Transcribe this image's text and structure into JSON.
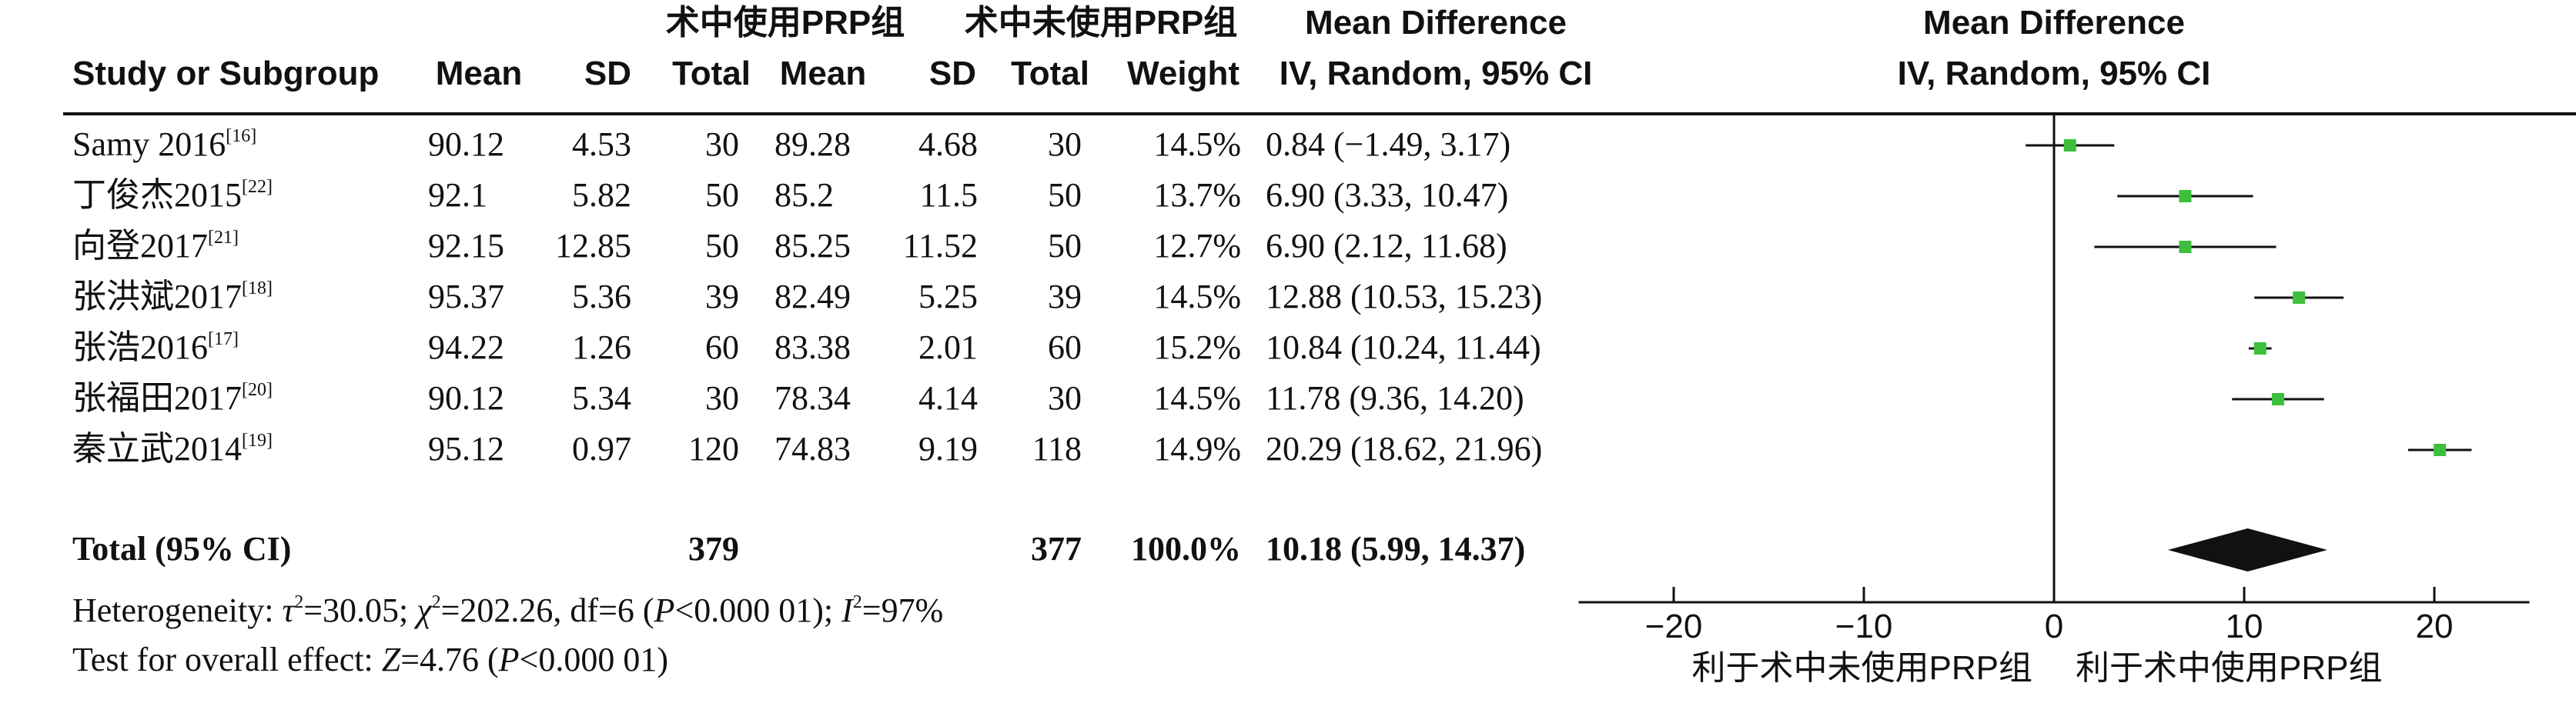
{
  "headers": {
    "group1": "术中使用PRP组",
    "group2": "术中未使用PRP组",
    "md_left_line1": "Mean Difference",
    "md_left_line2": "IV, Random, 95% CI",
    "md_right_line1": "Mean Difference",
    "md_right_line2": "IV, Random, 95% CI",
    "study": "Study or Subgroup",
    "mean1": "Mean",
    "sd1": "SD",
    "total1": "Total",
    "mean2": "Mean",
    "sd2": "SD",
    "total2": "Total",
    "weight": "Weight"
  },
  "studies": [
    {
      "name": "Samy 2016",
      "ref": "[16]",
      "mean1": "90.12",
      "sd1": "4.53",
      "total1": "30",
      "mean2": "89.28",
      "sd2": "4.68",
      "total2": "30",
      "weight": "14.5%",
      "ci": "0.84 (−1.49, 3.17)"
    },
    {
      "name": "丁俊杰2015",
      "ref": "[22]",
      "mean1": "92.1",
      "sd1": "5.82",
      "total1": "50",
      "mean2": "85.2",
      "sd2": "11.5",
      "total2": "50",
      "weight": "13.7%",
      "ci": "6.90 (3.33, 10.47)"
    },
    {
      "name": "向登2017",
      "ref": "[21]",
      "mean1": "92.15",
      "sd1": "12.85",
      "total1": "50",
      "mean2": "85.25",
      "sd2": "11.52",
      "total2": "50",
      "weight": "12.7%",
      "ci": "6.90 (2.12, 11.68)"
    },
    {
      "name": "张洪斌2017",
      "ref": "[18]",
      "mean1": "95.37",
      "sd1": "5.36",
      "total1": "39",
      "mean2": "82.49",
      "sd2": "5.25",
      "total2": "39",
      "weight": "14.5%",
      "ci": "12.88 (10.53, 15.23)"
    },
    {
      "name": "张浩2016",
      "ref": "[17]",
      "mean1": "94.22",
      "sd1": "1.26",
      "total1": "60",
      "mean2": "83.38",
      "sd2": "2.01",
      "total2": "60",
      "weight": "15.2%",
      "ci": "10.84 (10.24, 11.44)"
    },
    {
      "name": "张福田2017",
      "ref": "[20]",
      "mean1": "90.12",
      "sd1": "5.34",
      "total1": "30",
      "mean2": "78.34",
      "sd2": "4.14",
      "total2": "30",
      "weight": "14.5%",
      "ci": "11.78 (9.36, 14.20)"
    },
    {
      "name": "秦立武2014",
      "ref": "[19]",
      "mean1": "95.12",
      "sd1": "0.97",
      "total1": "120",
      "mean2": "74.83",
      "sd2": "9.19",
      "total2": "118",
      "weight": "14.9%",
      "ci": "20.29 (18.62, 21.96)"
    }
  ],
  "total": {
    "label": "Total (95% CI)",
    "total1": "379",
    "total2": "377",
    "weight": "100.0%",
    "ci": "10.18 (5.99, 14.37)"
  },
  "heterogeneity": {
    "prefix": "Heterogeneity: ",
    "tau": "τ",
    "tau_val": "=30.05; ",
    "chi": "χ",
    "chi_val": "=202.26, df=6 (",
    "p": "P",
    "p_val": "<0.000 01); ",
    "i": "I",
    "i_val": "=97%"
  },
  "overall_effect": {
    "prefix": "Test for overall effect: ",
    "z": "Z",
    "z_val": "=4.76 (",
    "p": "P",
    "p_val": "<0.000 01)"
  },
  "chart_data": {
    "type": "scatter",
    "subtype": "forest",
    "xlim": [
      -25,
      25
    ],
    "x_ticks": [
      -20,
      -10,
      0,
      10,
      20
    ],
    "x_tick_labels": [
      "−20",
      "−10",
      "0",
      "10",
      "20"
    ],
    "favours_left": "利于术中未使用PRP组",
    "favours_right": "利于术中使用PRP组",
    "studies": [
      {
        "name": "Samy 2016",
        "md": 0.84,
        "lo": -1.49,
        "hi": 3.17
      },
      {
        "name": "丁俊杰2015",
        "md": 6.9,
        "lo": 3.33,
        "hi": 10.47
      },
      {
        "name": "向登2017",
        "md": 6.9,
        "lo": 2.12,
        "hi": 11.68
      },
      {
        "name": "张洪斌2017",
        "md": 12.88,
        "lo": 10.53,
        "hi": 15.23
      },
      {
        "name": "张浩2016",
        "md": 10.84,
        "lo": 10.24,
        "hi": 11.44
      },
      {
        "name": "张福田2017",
        "md": 11.78,
        "lo": 9.36,
        "hi": 14.2
      },
      {
        "name": "秦立武2014",
        "md": 20.29,
        "lo": 18.62,
        "hi": 21.96
      }
    ],
    "pooled": {
      "md": 10.18,
      "lo": 5.99,
      "hi": 14.37
    },
    "marker_color": "#3dbf3d",
    "diamond_color": "#111111"
  }
}
